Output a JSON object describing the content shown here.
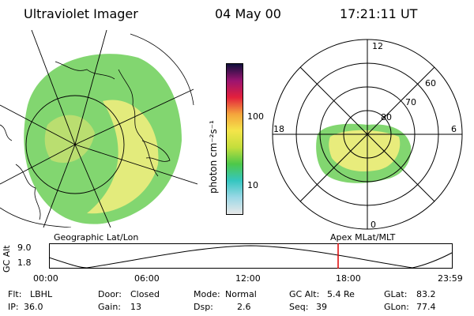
{
  "header": {
    "instrument": "Ultraviolet Imager",
    "date": "04 May 00",
    "time": "17:21:11 UT"
  },
  "colorbar": {
    "unit_label": "photon cm⁻²s⁻¹",
    "ticks": [
      "100",
      "10"
    ]
  },
  "left_panel": {
    "caption": "Geographic Lat/Lon"
  },
  "right_panel": {
    "caption": "Apex MLat/MLT",
    "mlt_labels": {
      "top": "12",
      "right": "6",
      "bottom": "0",
      "left": "18"
    },
    "lat_labels": [
      "60",
      "70",
      "80"
    ]
  },
  "orbit_plot": {
    "axis_label": "GC Alt",
    "y_ticks": [
      "9.0",
      "1.8"
    ],
    "x_ticks": [
      "00:00",
      "06:00",
      "12:00",
      "18:00",
      "23:59"
    ],
    "marker_time": "17:21"
  },
  "info": {
    "flt_label": "Flt:",
    "flt_value": "LBHL",
    "ip_label": "IP:",
    "ip_value": "36.0",
    "door_label": "Door:",
    "door_value": "Closed",
    "gain_label": "Gain:",
    "gain_value": "13",
    "mode_label": "Mode:",
    "mode_value": "Normal",
    "dsp_label": "Dsp:",
    "dsp_value": "2.6",
    "gcalt_label": "GC Alt:",
    "gcalt_value": "5.4 Re",
    "seq_label": "Seq:",
    "seq_value": "39",
    "glat_label": "GLat:",
    "glat_value": "83.2",
    "glon_label": "GLon:",
    "glon_value": "77.4"
  },
  "colors": {
    "colorbar_stops": [
      "#e8e8e8",
      "#9bd8e6",
      "#35c6c0",
      "#4dc84a",
      "#c4de3c",
      "#f4e54a",
      "#f4a43c",
      "#e3203c",
      "#9b1470",
      "#10103c"
    ],
    "aurora_green": "#7ed660",
    "aurora_yellow": "#ecec7a",
    "marker_red": "#dd0000"
  }
}
